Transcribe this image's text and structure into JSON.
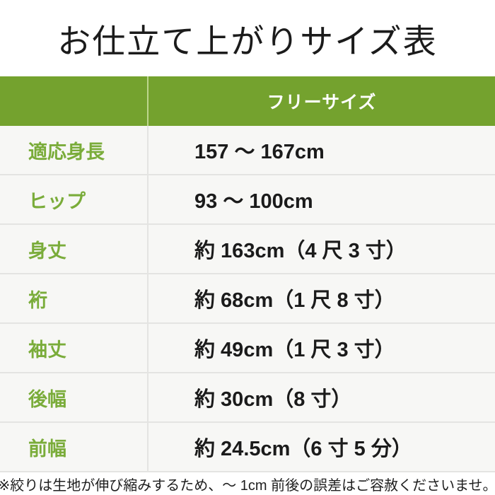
{
  "page": {
    "title": "お仕立て上がりサイズ表",
    "footnote": "※絞りは生地が伸び縮みするため、〜 1cm 前後の誤差はご容赦くださいませ。"
  },
  "table": {
    "header": {
      "size_column_label": "フリーサイズ"
    },
    "rows": [
      {
        "label": "適応身長",
        "value": "157 〜 167cm"
      },
      {
        "label": "ヒップ",
        "value": "93 〜 100cm"
      },
      {
        "label": "身丈",
        "value": "約 163cm（4 尺 3 寸）"
      },
      {
        "label": "裄",
        "value": "約 68cm（1 尺 8 寸）"
      },
      {
        "label": "袖丈",
        "value": "約 49cm（1 尺 3 寸）"
      },
      {
        "label": "後幅",
        "value": "約 30cm（8 寸）"
      },
      {
        "label": "前幅",
        "value": "約 24.5cm（6 寸 5 分）"
      }
    ]
  },
  "colors": {
    "header_green": "#74a22e",
    "header_text": "#ffffff",
    "label_green": "#7aac3a",
    "row_background": "#f7f7f5",
    "divider_gray": "#e4e4e2",
    "header_divider_green": "#bdd68d",
    "body_text": "#1b1b1b"
  }
}
